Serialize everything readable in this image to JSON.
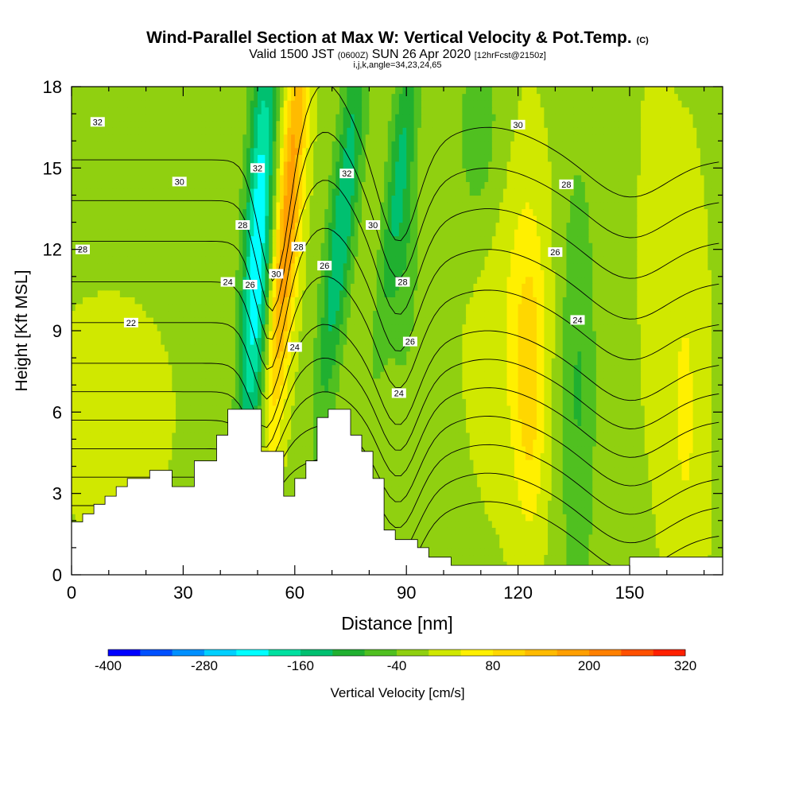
{
  "header": {
    "title_main": "Wind-Parallel Section at Max W: Vertical Velocity & Pot.Temp.",
    "title_units": "(C)",
    "subtitle_a": "Valid 1500 JST",
    "subtitle_z": "(0600Z)",
    "subtitle_b": "SUN 26 Apr 2020",
    "subtitle_fcst": "[12hrFcst@2150z]",
    "indices": "i,j,k,angle=34,23,24,65"
  },
  "chart_data": {
    "type": "heatmap",
    "xlabel": "Distance [nm]",
    "ylabel": "Height [Kft MSL]",
    "xlim": [
      0,
      175
    ],
    "ylim": [
      0,
      18
    ],
    "x_ticks": [
      0,
      30,
      60,
      90,
      120,
      150
    ],
    "y_ticks": [
      0,
      3,
      6,
      9,
      12,
      15,
      18
    ],
    "colorbar": {
      "label": "Vertical Velocity [cm/s]",
      "tick_labels": [
        "-400",
        "-280",
        "-160",
        "-40",
        "80",
        "200",
        "320"
      ],
      "min": -400,
      "max": 320,
      "step": 40,
      "colors": [
        "#0000ff",
        "#0050ff",
        "#0090ff",
        "#00d0ff",
        "#00ffff",
        "#00e0a0",
        "#00c070",
        "#20b030",
        "#50c020",
        "#90d010",
        "#d0e800",
        "#fff000",
        "#ffd700",
        "#ffbb00",
        "#ff9f00",
        "#ff8000",
        "#ff5000",
        "#ff2000",
        "#e00020",
        "#b00040",
        "#800070",
        "#600090"
      ]
    },
    "vertical_velocity_field": {
      "description_units": "cm/s",
      "background": -10,
      "features": [
        {
          "x": 50,
          "y": 12,
          "value": -220
        },
        {
          "x": 59,
          "y": 13,
          "value": 185
        },
        {
          "x": 74,
          "y": 14,
          "value": -140
        },
        {
          "x": 87,
          "y": 14,
          "value": -70
        },
        {
          "x": 124,
          "y": 7,
          "value": 85
        },
        {
          "x": 135,
          "y": 9,
          "value": -70
        },
        {
          "x": 165,
          "y": 6,
          "value": 50
        }
      ]
    },
    "potential_temperature_contours": {
      "units": "C",
      "labels": [
        {
          "text": "32",
          "x": 7,
          "y": 16.7
        },
        {
          "text": "30",
          "x": 29,
          "y": 14.5
        },
        {
          "text": "28",
          "x": 3,
          "y": 12
        },
        {
          "text": "24",
          "x": 42,
          "y": 10.8
        },
        {
          "text": "22",
          "x": 16,
          "y": 9.3
        },
        {
          "text": "32",
          "x": 50,
          "y": 15
        },
        {
          "text": "28",
          "x": 46,
          "y": 12.9
        },
        {
          "text": "26",
          "x": 48,
          "y": 10.7
        },
        {
          "text": "30",
          "x": 55,
          "y": 11.1
        },
        {
          "text": "28",
          "x": 61,
          "y": 12.1
        },
        {
          "text": "24",
          "x": 60,
          "y": 8.4
        },
        {
          "text": "26",
          "x": 68,
          "y": 11.4
        },
        {
          "text": "32",
          "x": 74,
          "y": 14.8
        },
        {
          "text": "30",
          "x": 81,
          "y": 12.9
        },
        {
          "text": "28",
          "x": 89,
          "y": 10.8
        },
        {
          "text": "26",
          "x": 91,
          "y": 8.6
        },
        {
          "text": "24",
          "x": 88,
          "y": 6.7
        },
        {
          "text": "30",
          "x": 120,
          "y": 16.6
        },
        {
          "text": "28",
          "x": 133,
          "y": 14.4
        },
        {
          "text": "26",
          "x": 130,
          "y": 11.9
        },
        {
          "text": "24",
          "x": 136,
          "y": 9.4
        }
      ]
    },
    "terrain_kft": {
      "x": [
        0,
        3,
        6,
        9,
        12,
        15,
        18,
        21,
        24,
        27,
        30,
        33,
        36,
        39,
        42,
        45,
        48,
        51,
        54,
        57,
        60,
        63,
        66,
        69,
        72,
        75,
        78,
        81,
        84,
        87,
        90,
        93,
        96,
        99,
        102,
        105,
        108,
        111,
        114,
        117,
        120,
        123,
        126,
        129,
        132,
        135,
        138,
        141,
        144,
        147,
        150,
        153,
        156,
        159,
        162,
        165,
        168,
        171,
        175
      ],
      "height": [
        1.95,
        2.25,
        2.6,
        2.9,
        3.25,
        3.55,
        3.55,
        3.85,
        3.85,
        3.25,
        3.25,
        4.2,
        4.2,
        5.15,
        6.1,
        6.1,
        6.1,
        4.55,
        4.55,
        2.9,
        3.55,
        4.2,
        5.8,
        6.1,
        6.1,
        5.15,
        4.55,
        3.55,
        1.65,
        1.3,
        1.3,
        1,
        0.65,
        0.65,
        0.35,
        0.35,
        0.35,
        0.35,
        0.35,
        0.35,
        0.35,
        0.35,
        0.35,
        0.35,
        0.35,
        0.35,
        0.35,
        0.35,
        0.35,
        0.35,
        0.65,
        0.65,
        0.65,
        0.65,
        0.65,
        0.65,
        0.65,
        0.65,
        0.65
      ]
    }
  }
}
